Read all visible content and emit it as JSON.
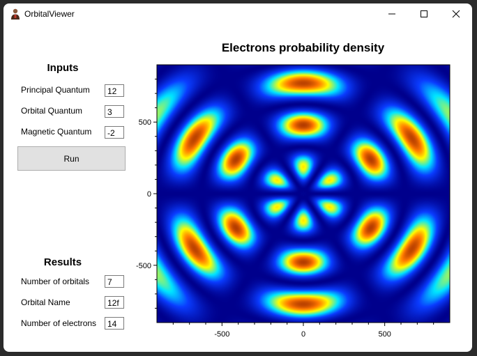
{
  "window": {
    "title": "OrbitalViewer",
    "controls": [
      "minimize",
      "maximize",
      "close"
    ]
  },
  "inputs": {
    "heading": "Inputs",
    "fields": [
      {
        "label": "Principal Quantum",
        "value": "12"
      },
      {
        "label": "Orbital Quantum",
        "value": "3"
      },
      {
        "label": "Magnetic Quantum",
        "value": "-2"
      }
    ],
    "run_label": "Run"
  },
  "results": {
    "heading": "Results",
    "fields": [
      {
        "label": "Number of orbitals",
        "value": "7"
      },
      {
        "label": "Orbital Name",
        "value": "12f"
      },
      {
        "label": "Number of electrons",
        "value": "14"
      }
    ]
  },
  "chart_data": {
    "type": "heatmap",
    "title": "Electrons probability density",
    "xlabel": "",
    "ylabel": "",
    "xlim": [
      -900,
      900
    ],
    "ylim": [
      -900,
      900
    ],
    "xticks": [
      -500,
      0,
      500
    ],
    "yticks": [
      500,
      0,
      -500
    ],
    "colormap": [
      "#00008c",
      "#0a3cff",
      "#00e6ff",
      "#ffff00",
      "#ff7800",
      "#b43c00"
    ],
    "background_color": "#00008c"
  }
}
